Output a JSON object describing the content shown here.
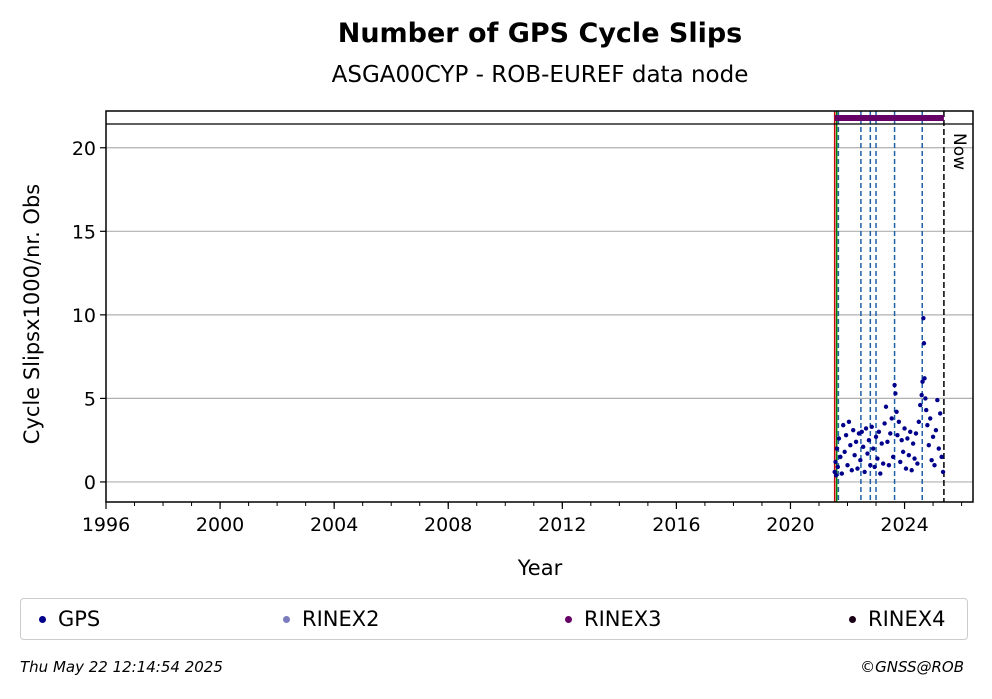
{
  "chart_data": {
    "type": "scatter",
    "title": "Number of GPS Cycle Slips",
    "subtitle": "ASGA00CYP - ROB-EUREF data node",
    "xlabel": "Year",
    "ylabel": "Cycle Slipsx1000/nr. Obs",
    "xlim": [
      1996,
      2026.4
    ],
    "ylim": [
      -1.2,
      22.2
    ],
    "x_ticks": [
      "1996",
      "2000",
      "2004",
      "2008",
      "2012",
      "2016",
      "2020",
      "2024"
    ],
    "y_ticks": [
      "0",
      "5",
      "10",
      "15",
      "20"
    ],
    "grid": "horizontal",
    "legend_position": "bottom",
    "legend": [
      {
        "name": "GPS",
        "color": "#00008b"
      },
      {
        "name": "RINEX2",
        "color": "#7b7bbf"
      },
      {
        "name": "RINEX3",
        "color": "#660066"
      },
      {
        "name": "RINEX4",
        "color": "#1a0016"
      }
    ],
    "rinex3_period": [
      2021.55,
      2025.38
    ],
    "start_line_year": 2021.55,
    "event_lines": [
      2021.68,
      2022.47,
      2022.8,
      2023.0,
      2023.65,
      2024.62
    ],
    "now_line_year": 2025.38,
    "now_label": "Now",
    "series": [
      {
        "name": "GPS",
        "color": "#00008b",
        "points": [
          [
            2021.55,
            0.6
          ],
          [
            2021.58,
            1.2
          ],
          [
            2021.6,
            0.4
          ],
          [
            2021.63,
            2.0
          ],
          [
            2021.66,
            0.9
          ],
          [
            2021.7,
            2.6
          ],
          [
            2021.75,
            1.5
          ],
          [
            2021.8,
            0.5
          ],
          [
            2021.85,
            3.4
          ],
          [
            2021.9,
            1.8
          ],
          [
            2021.95,
            2.8
          ],
          [
            2022.0,
            1.0
          ],
          [
            2022.05,
            3.6
          ],
          [
            2022.1,
            2.2
          ],
          [
            2022.15,
            0.7
          ],
          [
            2022.2,
            3.1
          ],
          [
            2022.25,
            1.6
          ],
          [
            2022.3,
            2.4
          ],
          [
            2022.35,
            0.8
          ],
          [
            2022.4,
            2.9
          ],
          [
            2022.45,
            1.3
          ],
          [
            2022.5,
            3.0
          ],
          [
            2022.55,
            2.1
          ],
          [
            2022.6,
            0.6
          ],
          [
            2022.65,
            3.2
          ],
          [
            2022.7,
            1.7
          ],
          [
            2022.75,
            2.5
          ],
          [
            2022.8,
            1.0
          ],
          [
            2022.85,
            3.3
          ],
          [
            2022.9,
            2.0
          ],
          [
            2022.95,
            0.9
          ],
          [
            2023.0,
            2.7
          ],
          [
            2023.05,
            1.4
          ],
          [
            2023.1,
            3.0
          ],
          [
            2023.15,
            0.5
          ],
          [
            2023.2,
            2.3
          ],
          [
            2023.25,
            1.1
          ],
          [
            2023.3,
            3.5
          ],
          [
            2023.35,
            4.5
          ],
          [
            2023.4,
            2.4
          ],
          [
            2023.45,
            1.0
          ],
          [
            2023.5,
            2.9
          ],
          [
            2023.55,
            3.8
          ],
          [
            2023.6,
            1.5
          ],
          [
            2023.65,
            5.8
          ],
          [
            2023.68,
            5.3
          ],
          [
            2023.72,
            4.2
          ],
          [
            2023.75,
            2.8
          ],
          [
            2023.8,
            3.6
          ],
          [
            2023.85,
            1.2
          ],
          [
            2023.9,
            2.5
          ],
          [
            2023.95,
            1.8
          ],
          [
            2024.0,
            3.2
          ],
          [
            2024.05,
            0.8
          ],
          [
            2024.1,
            2.6
          ],
          [
            2024.15,
            1.6
          ],
          [
            2024.2,
            3.0
          ],
          [
            2024.25,
            0.7
          ],
          [
            2024.3,
            2.3
          ],
          [
            2024.35,
            1.4
          ],
          [
            2024.4,
            2.9
          ],
          [
            2024.45,
            1.1
          ],
          [
            2024.5,
            3.6
          ],
          [
            2024.55,
            4.6
          ],
          [
            2024.6,
            5.2
          ],
          [
            2024.63,
            6.0
          ],
          [
            2024.66,
            9.8
          ],
          [
            2024.68,
            8.3
          ],
          [
            2024.7,
            6.2
          ],
          [
            2024.73,
            5.0
          ],
          [
            2024.76,
            4.3
          ],
          [
            2024.8,
            3.4
          ],
          [
            2024.85,
            2.2
          ],
          [
            2024.9,
            3.8
          ],
          [
            2024.95,
            1.3
          ],
          [
            2025.0,
            2.7
          ],
          [
            2025.05,
            1.0
          ],
          [
            2025.1,
            3.1
          ],
          [
            2025.15,
            4.9
          ],
          [
            2025.2,
            2.0
          ],
          [
            2025.25,
            4.1
          ],
          [
            2025.3,
            1.5
          ],
          [
            2025.35,
            0.6
          ]
        ]
      }
    ]
  },
  "legend": {
    "gps": "GPS",
    "rinex2": "RINEX2",
    "rinex3": "RINEX3",
    "rinex4": "RINEX4"
  },
  "footer": {
    "timestamp": "Thu May 22 12:14:54 2025",
    "credit": "©GNSS@ROB"
  }
}
